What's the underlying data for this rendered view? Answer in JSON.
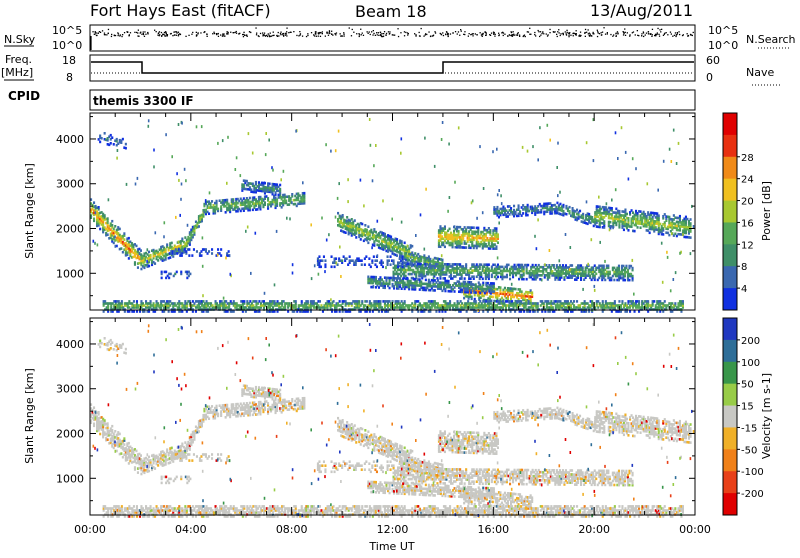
{
  "header": {
    "title": "Fort Hays East (fitACF)",
    "beam": "Beam 18",
    "date": "13/Aug/2011"
  },
  "top_panels": {
    "nsky_label": "N.Sky",
    "nsearch_label": "N.Search",
    "nsky_ticks": [
      "10^5",
      "10^0"
    ],
    "nsearch_ticks": [
      "10^5",
      "10^0"
    ],
    "freq_label_top": "Freq.",
    "freq_label_unit": "[MHz]",
    "freq_ticks": [
      "18",
      "8"
    ],
    "nave_label": "Nave",
    "nave_ticks": [
      "60",
      "0"
    ],
    "cpid_label": "CPID",
    "cpid_value": "themis 3300 IF"
  },
  "chart_data": [
    {
      "type": "heatmap",
      "name": "power",
      "ylabel": "Slant Range [km]",
      "xlabel": "",
      "xlim": [
        0,
        24
      ],
      "ylim": [
        180,
        4580
      ],
      "yticks": [
        "1000",
        "2000",
        "3000",
        "4000"
      ],
      "colorbar_label": "Power [dB]",
      "colorbar_ticks": [
        "4",
        "8",
        "12",
        "16",
        "20",
        "24",
        "28"
      ],
      "colorbar_colors": [
        "#1030e0",
        "#3a68b0",
        "#3f8f68",
        "#56a858",
        "#a8c830",
        "#f0c020",
        "#f08a18",
        "#e83010",
        "#e00000"
      ]
    },
    {
      "type": "heatmap",
      "name": "velocity",
      "ylabel": "Slant Range [km]",
      "xlabel": "Time UT",
      "xlim": [
        0,
        24
      ],
      "ylim": [
        180,
        4580
      ],
      "yticks": [
        "1000",
        "2000",
        "3000",
        "4000"
      ],
      "xticks": [
        "00:00",
        "04:00",
        "08:00",
        "12:00",
        "16:00",
        "20:00",
        "00:00"
      ],
      "colorbar_label": "Velocity [m s-1]",
      "colorbar_ticks": [
        "200",
        "100",
        "50",
        "15",
        "-15",
        "-50",
        "-100",
        "-200"
      ],
      "colorbar_colors": [
        "#2038c0",
        "#2e6e98",
        "#38964a",
        "#98cc48",
        "#c8c8c4",
        "#f0b028",
        "#f08018",
        "#e84018",
        "#e00000"
      ]
    }
  ]
}
